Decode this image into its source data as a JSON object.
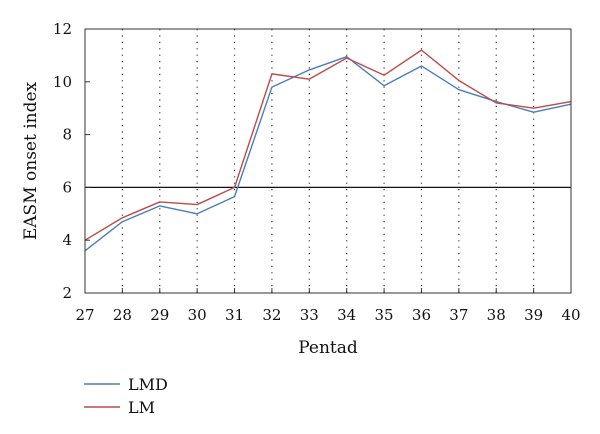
{
  "chart_data": {
    "type": "line",
    "title": "",
    "xlabel": "Pentad",
    "ylabel": "EASM onset index",
    "x": [
      27,
      28,
      29,
      30,
      31,
      32,
      33,
      34,
      35,
      36,
      37,
      38,
      39,
      40
    ],
    "xlim": [
      27,
      40
    ],
    "ylim": [
      2,
      12
    ],
    "yticks": [
      2,
      4,
      6,
      8,
      10,
      12
    ],
    "vertical_dotted_gridlines": true,
    "reference_line": {
      "y": 6,
      "style": "solid"
    },
    "legend_position": "bottom-left, below plot",
    "series": [
      {
        "name": "LMD",
        "color": "#4a7ebb",
        "values": [
          3.6,
          4.7,
          5.3,
          5.0,
          5.65,
          9.8,
          10.45,
          10.95,
          9.85,
          10.6,
          9.7,
          9.25,
          8.85,
          9.15
        ]
      },
      {
        "name": "LM",
        "color": "#be4b48",
        "values": [
          4.0,
          4.85,
          5.45,
          5.35,
          6.0,
          10.3,
          10.1,
          10.9,
          10.25,
          11.2,
          10.05,
          9.2,
          9.0,
          9.25
        ]
      }
    ]
  }
}
